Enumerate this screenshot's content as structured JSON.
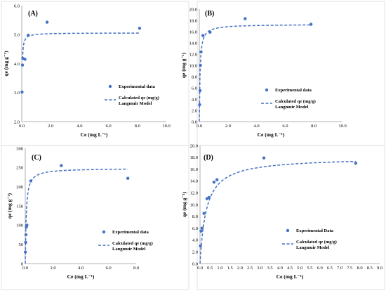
{
  "colors": {
    "accent": "#4472c4"
  },
  "chart_data": [
    {
      "type": "scatter",
      "title": "(A)",
      "xlabel": "Ce (mg L⁻¹)",
      "ylabel": "qe (mg g⁻¹)",
      "xlim": [
        0,
        10
      ],
      "ylim": [
        2,
        6
      ],
      "xticks": [
        "0.0",
        "2.0",
        "4.0",
        "6.0",
        "8.0",
        "10.0"
      ],
      "yticks": [
        "2.0",
        "3.0",
        "4.0",
        "5.0",
        "6.0"
      ],
      "legend_position": "right",
      "series": [
        {
          "name": "Experimental data",
          "kind": "points",
          "x": [
            0.02,
            0.05,
            0.08,
            0.22,
            0.45,
            1.75,
            8.15
          ],
          "y": [
            3.02,
            3.95,
            4.18,
            4.15,
            4.98,
            5.43,
            5.22
          ]
        },
        {
          "name": "Calculated qe (mg/g) Langmuir Model",
          "kind": "curve",
          "model": "langmuir",
          "qmax": 5.06,
          "KL": 90,
          "x_from": 0,
          "x_to": 8.2
        }
      ]
    },
    {
      "type": "scatter",
      "title": "(B)",
      "xlabel": "Ce (mg L⁻¹)",
      "ylabel": "qe (mg g⁻¹)",
      "xlim": [
        0,
        10
      ],
      "ylim": [
        0,
        20
      ],
      "xticks": [
        "0.0",
        "2.0",
        "4.0",
        "6.0",
        "8.0",
        "10.0"
      ],
      "yticks": [
        "0.0",
        "2.0",
        "4.0",
        "6.0",
        "8.0",
        "10.0",
        "12.0",
        "14.0",
        "16.0",
        "18.0",
        "20.0"
      ],
      "legend_position": "right",
      "series": [
        {
          "name": "Experimental data",
          "kind": "points",
          "x": [
            0.02,
            0.05,
            0.08,
            0.12,
            0.25,
            0.75,
            3.2,
            7.8
          ],
          "y": [
            3.0,
            5.5,
            10.0,
            12.4,
            15.3,
            15.9,
            18.3,
            17.3
          ]
        },
        {
          "name": "Calculated qe (mg/g) Langmuir Model",
          "kind": "curve",
          "model": "langmuir",
          "qmax": 17.3,
          "KL": 20,
          "x_from": 0,
          "x_to": 7.8
        }
      ]
    },
    {
      "type": "scatter",
      "title": "(C)",
      "xlabel": "Ce (mg L⁻¹)",
      "ylabel": "qe (mg g⁻¹)",
      "xlim": [
        0,
        8
      ],
      "ylim": [
        0,
        300
      ],
      "xticks": [
        "0.0",
        "2.0",
        "4.0",
        "6.0",
        "8.0"
      ],
      "yticks": [
        "0",
        "50",
        "100",
        "150",
        "200",
        "250",
        "300"
      ],
      "legend_position": "right",
      "series": [
        {
          "name": "Experimental data",
          "kind": "points",
          "x": [
            0.01,
            0.03,
            0.05,
            0.08,
            0.12,
            0.4,
            2.6,
            7.4
          ],
          "y": [
            30,
            55,
            75,
            95,
            100,
            215,
            255,
            222
          ]
        },
        {
          "name": "Calculated qe (mg/g) Langmuir Model",
          "kind": "curve",
          "model": "langmuir",
          "qmax": 248,
          "KL": 15,
          "x_from": 0,
          "x_to": 7.4
        }
      ]
    },
    {
      "type": "scatter",
      "title": "(D)",
      "xlabel": "Ce (mg L⁻¹)",
      "ylabel": "qe (mg g⁻¹)",
      "xlim": [
        0,
        9
      ],
      "ylim": [
        0,
        20
      ],
      "xticks": [
        "0.0",
        "0.5",
        "1.0",
        "1.5",
        "2.0",
        "2.5",
        "3.0",
        "3.5",
        "4.0",
        "4.5",
        "5.0",
        "5.5",
        "6.0",
        "6.5",
        "7.0",
        "7.5",
        "8.0",
        "8.5",
        "9.0"
      ],
      "yticks": [
        "0.0",
        "2.0",
        "4.0",
        "6.0",
        "8.0",
        "10.0",
        "12.0",
        "14.0",
        "16.0",
        "18.0",
        "20.0"
      ],
      "legend_position": "right",
      "series": [
        {
          "name": "Experimental Data",
          "kind": "points",
          "x": [
            0.02,
            0.05,
            0.1,
            0.2,
            0.35,
            0.45,
            0.7,
            0.85,
            3.2,
            7.8
          ],
          "y": [
            3.0,
            5.5,
            6.0,
            8.5,
            11.0,
            11.2,
            13.8,
            14.2,
            17.9,
            17.0
          ]
        },
        {
          "name": "Calculated qe (mg/g) Langmuir Model",
          "kind": "curve",
          "model": "langmuir",
          "qmax": 18.0,
          "KL": 3.2,
          "x_from": 0,
          "x_to": 7.8
        }
      ]
    }
  ]
}
